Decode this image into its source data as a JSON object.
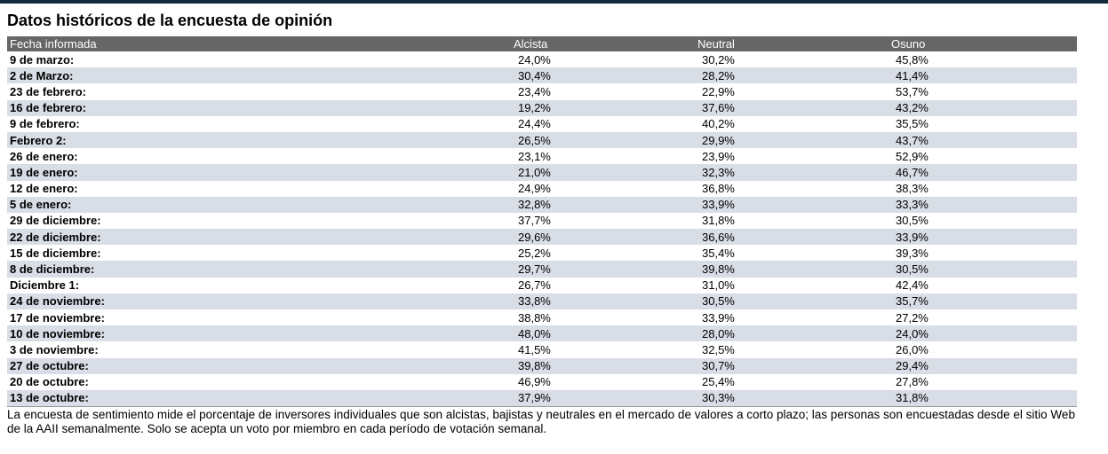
{
  "page": {
    "footer": "La encuesta de sentimiento mide el porcentaje de inversores individuales que son alcistas, bajistas y neutrales en el mercado de valores a corto plazo; las personas son encuestadas desde el sitio Web de la AAII semanalmente. Solo se acepta un voto por miembro en cada período de votación semanal."
  },
  "chart_data": {
    "type": "table",
    "title": "Datos históricos de la encuesta de opinión",
    "columns": [
      "Fecha informada",
      "Alcista",
      "Neutral",
      "Osuno"
    ],
    "rows": [
      [
        "9 de marzo:",
        "24,0%",
        "30,2%",
        "45,8%"
      ],
      [
        "2 de Marzo:",
        "30,4%",
        "28,2%",
        "41,4%"
      ],
      [
        "23 de febrero:",
        "23,4%",
        "22,9%",
        "53,7%"
      ],
      [
        "16 de febrero:",
        "19,2%",
        "37,6%",
        "43,2%"
      ],
      [
        "9 de febrero:",
        "24,4%",
        "40,2%",
        "35,5%"
      ],
      [
        "Febrero 2:",
        "26,5%",
        "29,9%",
        "43,7%"
      ],
      [
        "26 de enero:",
        "23,1%",
        "23,9%",
        "52,9%"
      ],
      [
        "19 de enero:",
        "21,0%",
        "32,3%",
        "46,7%"
      ],
      [
        "12 de enero:",
        "24,9%",
        "36,8%",
        "38,3%"
      ],
      [
        "5 de enero:",
        "32,8%",
        "33,9%",
        "33,3%"
      ],
      [
        "29 de diciembre:",
        "37,7%",
        "31,8%",
        "30,5%"
      ],
      [
        "22 de diciembre:",
        "29,6%",
        "36,6%",
        "33,9%"
      ],
      [
        "15 de diciembre:",
        "25,2%",
        "35,4%",
        "39,3%"
      ],
      [
        "8 de diciembre:",
        "29,7%",
        "39,8%",
        "30,5%"
      ],
      [
        "Diciembre 1:",
        "26,7%",
        "31,0%",
        "42,4%"
      ],
      [
        "24 de noviembre:",
        "33,8%",
        "30,5%",
        "35,7%"
      ],
      [
        "17 de noviembre:",
        "38,8%",
        "33,9%",
        "27,2%"
      ],
      [
        "10 de noviembre:",
        "48,0%",
        "28,0%",
        "24,0%"
      ],
      [
        "3 de noviembre:",
        "41,5%",
        "32,5%",
        "26,0%"
      ],
      [
        "27 de octubre:",
        "39,8%",
        "30,7%",
        "29,4%"
      ],
      [
        "20 de octubre:",
        "46,9%",
        "25,4%",
        "27,8%"
      ],
      [
        "13 de octubre:",
        "37,9%",
        "30,3%",
        "31,8%"
      ]
    ]
  },
  "colors": {
    "top_bar": "#142a3d",
    "header_bg": "#666666",
    "header_text": "#ffffff",
    "row_alt_bg": "#d8dde6",
    "table_border": "#999999",
    "text": "#000000"
  }
}
